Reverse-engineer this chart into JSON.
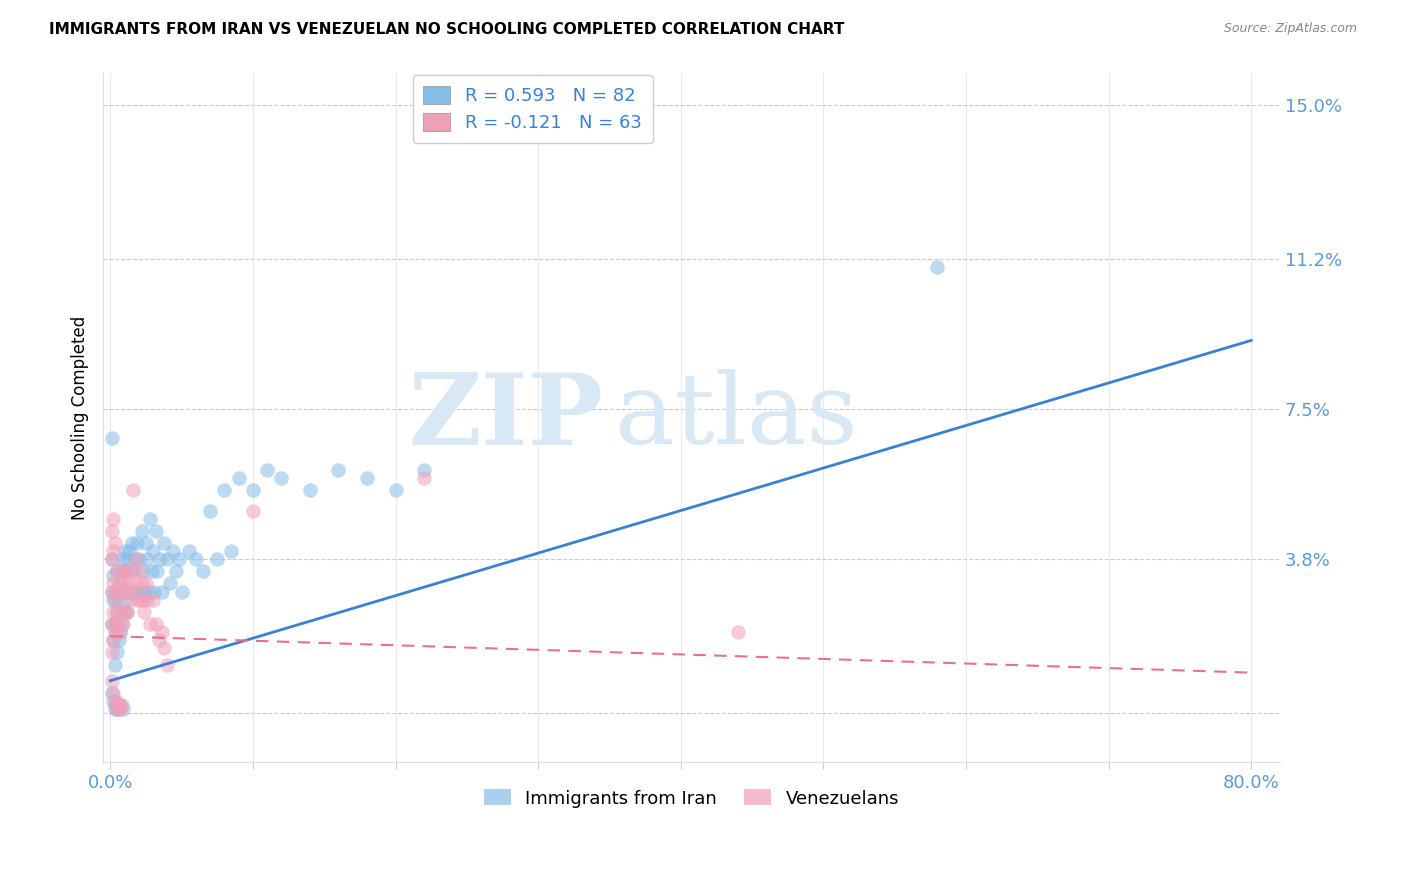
{
  "title": "IMMIGRANTS FROM IRAN VS VENEZUELAN NO SCHOOLING COMPLETED CORRELATION CHART",
  "source": "Source: ZipAtlas.com",
  "ylabel": "No Schooling Completed",
  "xlim": [
    -0.005,
    0.82
  ],
  "ylim": [
    -0.012,
    0.158
  ],
  "ytick_vals": [
    0.0,
    0.038,
    0.075,
    0.112,
    0.15
  ],
  "ytick_labels": [
    "",
    "3.8%",
    "7.5%",
    "11.2%",
    "15.0%"
  ],
  "xtick_vals": [
    0.0,
    0.1,
    0.2,
    0.3,
    0.4,
    0.5,
    0.6,
    0.7,
    0.8
  ],
  "xtick_labels": [
    "0.0%",
    "",
    "",
    "",
    "",
    "",
    "",
    "",
    "80.0%"
  ],
  "legend_labels_bottom": [
    "Immigrants from Iran",
    "Venezuelans"
  ],
  "blue_color": "#85bce8",
  "pink_color": "#f2a0b8",
  "blue_line_color": "#3a80d4",
  "pink_line_color": "#e8708a",
  "blue_line_x0": 0.0,
  "blue_line_y0": 0.008,
  "blue_line_x1": 0.8,
  "blue_line_y1": 0.092,
  "pink_line_x0": 0.0,
  "pink_line_y0": 0.019,
  "pink_line_x1": 0.8,
  "pink_line_y1": 0.01,
  "watermark_zip": "ZIP",
  "watermark_atlas": "atlas",
  "watermark_color": "#d8e8f5",
  "background_color": "#ffffff",
  "title_fontsize": 11,
  "source_fontsize": 9,
  "axis_label_color": "#5a9bd5",
  "iran_R": 0.593,
  "iran_N": 82,
  "venezuela_R": -0.121,
  "venezuela_N": 63,
  "iran_points_x": [
    0.001,
    0.001,
    0.001,
    0.002,
    0.002,
    0.002,
    0.003,
    0.003,
    0.003,
    0.004,
    0.004,
    0.005,
    0.005,
    0.005,
    0.006,
    0.006,
    0.007,
    0.007,
    0.008,
    0.008,
    0.009,
    0.009,
    0.01,
    0.01,
    0.011,
    0.012,
    0.012,
    0.013,
    0.014,
    0.015,
    0.016,
    0.017,
    0.018,
    0.019,
    0.02,
    0.021,
    0.022,
    0.023,
    0.024,
    0.025,
    0.026,
    0.027,
    0.028,
    0.029,
    0.03,
    0.031,
    0.032,
    0.033,
    0.035,
    0.036,
    0.038,
    0.04,
    0.042,
    0.044,
    0.046,
    0.048,
    0.05,
    0.055,
    0.06,
    0.065,
    0.07,
    0.075,
    0.08,
    0.085,
    0.09,
    0.1,
    0.11,
    0.12,
    0.14,
    0.16,
    0.18,
    0.2,
    0.22,
    0.001,
    0.002,
    0.003,
    0.004,
    0.005,
    0.007,
    0.009,
    0.58,
    0.001
  ],
  "iran_points_y": [
    0.038,
    0.03,
    0.022,
    0.034,
    0.028,
    0.018,
    0.03,
    0.022,
    0.012,
    0.028,
    0.02,
    0.035,
    0.025,
    0.015,
    0.03,
    0.018,
    0.032,
    0.02,
    0.035,
    0.022,
    0.038,
    0.025,
    0.04,
    0.028,
    0.035,
    0.038,
    0.025,
    0.04,
    0.03,
    0.042,
    0.035,
    0.038,
    0.03,
    0.042,
    0.038,
    0.03,
    0.045,
    0.035,
    0.03,
    0.042,
    0.038,
    0.03,
    0.048,
    0.035,
    0.04,
    0.03,
    0.045,
    0.035,
    0.038,
    0.03,
    0.042,
    0.038,
    0.032,
    0.04,
    0.035,
    0.038,
    0.03,
    0.04,
    0.038,
    0.035,
    0.05,
    0.038,
    0.055,
    0.04,
    0.058,
    0.055,
    0.06,
    0.058,
    0.055,
    0.06,
    0.058,
    0.055,
    0.06,
    0.005,
    0.003,
    0.001,
    0.002,
    0.001,
    0.002,
    0.001,
    0.11,
    0.068
  ],
  "venezuela_points_x": [
    0.001,
    0.001,
    0.001,
    0.002,
    0.002,
    0.002,
    0.003,
    0.003,
    0.004,
    0.004,
    0.005,
    0.005,
    0.006,
    0.006,
    0.007,
    0.007,
    0.008,
    0.008,
    0.009,
    0.009,
    0.01,
    0.01,
    0.011,
    0.012,
    0.012,
    0.013,
    0.014,
    0.015,
    0.016,
    0.017,
    0.018,
    0.019,
    0.02,
    0.021,
    0.022,
    0.023,
    0.024,
    0.025,
    0.026,
    0.028,
    0.03,
    0.032,
    0.034,
    0.036,
    0.038,
    0.04,
    0.001,
    0.002,
    0.003,
    0.004,
    0.005,
    0.006,
    0.007,
    0.008,
    0.001,
    0.001,
    0.002,
    0.002,
    0.003,
    0.016,
    0.44,
    0.22,
    0.1
  ],
  "venezuela_points_y": [
    0.03,
    0.022,
    0.015,
    0.032,
    0.025,
    0.018,
    0.028,
    0.02,
    0.03,
    0.022,
    0.035,
    0.025,
    0.032,
    0.022,
    0.03,
    0.02,
    0.035,
    0.025,
    0.032,
    0.022,
    0.035,
    0.025,
    0.03,
    0.035,
    0.025,
    0.032,
    0.028,
    0.035,
    0.03,
    0.032,
    0.038,
    0.028,
    0.035,
    0.028,
    0.032,
    0.028,
    0.025,
    0.032,
    0.028,
    0.022,
    0.028,
    0.022,
    0.018,
    0.02,
    0.016,
    0.012,
    0.008,
    0.005,
    0.002,
    0.003,
    0.001,
    0.002,
    0.001,
    0.002,
    0.038,
    0.045,
    0.04,
    0.048,
    0.042,
    0.055,
    0.02,
    0.058,
    0.05
  ]
}
